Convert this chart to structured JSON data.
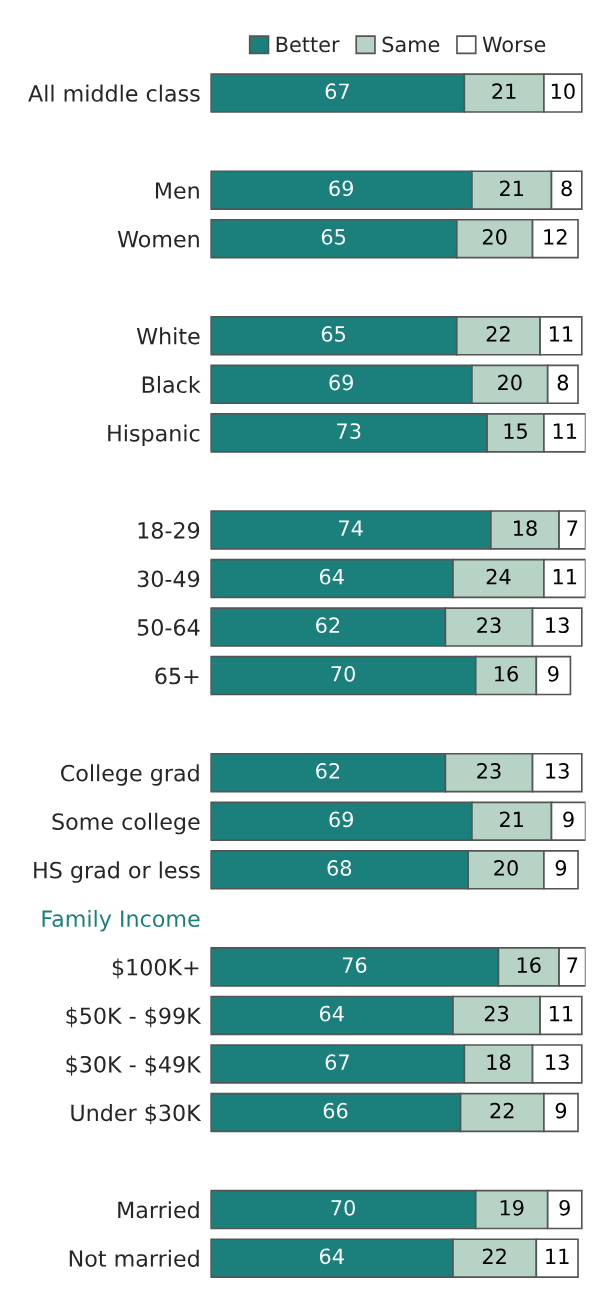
{
  "chart_data": {
    "type": "bar",
    "orientation": "horizontal",
    "stacked": true,
    "data_labels": true,
    "legend": "top",
    "grid": false,
    "tick_labels": "y",
    "categories": [
      "All middle class",
      null,
      "Men",
      "Women",
      null,
      "White",
      "Black",
      "Hispanic",
      null,
      "18-29",
      "30-49",
      "50-64",
      "65+",
      null,
      "College grad",
      "Some college",
      "HS grad or less",
      "Family Income",
      "$100K+",
      "$50K - $99K",
      "$30K - $49K",
      "Under $30K",
      null,
      "Married",
      "Not married"
    ],
    "series": [
      {
        "name": "Better",
        "color": "#1b7f7b",
        "values": [
          67,
          null,
          69,
          65,
          null,
          65,
          69,
          73,
          null,
          74,
          64,
          62,
          70,
          null,
          62,
          69,
          68,
          null,
          76,
          64,
          67,
          66,
          null,
          70,
          64
        ]
      },
      {
        "name": "Same",
        "color": "#b7d3c6",
        "values": [
          21,
          null,
          21,
          20,
          null,
          22,
          20,
          15,
          null,
          18,
          24,
          23,
          16,
          null,
          23,
          21,
          20,
          null,
          16,
          23,
          18,
          22,
          null,
          19,
          22
        ]
      },
      {
        "name": "Worse",
        "color": "#ffffff",
        "values": [
          10,
          null,
          8,
          12,
          null,
          11,
          8,
          11,
          null,
          7,
          11,
          13,
          9,
          null,
          13,
          9,
          9,
          null,
          7,
          11,
          13,
          9,
          null,
          9,
          11
        ]
      }
    ]
  }
}
